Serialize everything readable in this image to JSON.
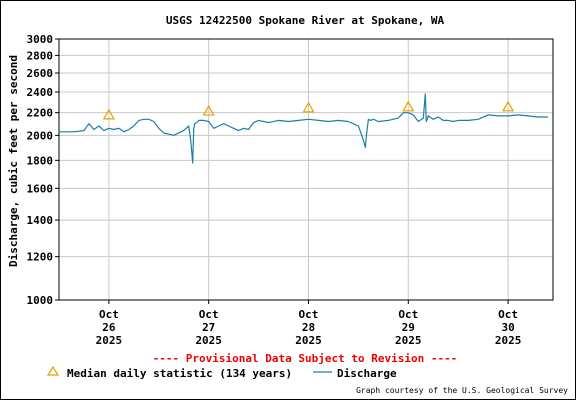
{
  "chart_data": {
    "type": "line",
    "title": "USGS 12422500 Spokane River at Spokane, WA",
    "ylabel": "Discharge, cubic feet per second",
    "xlabel": "",
    "y_scale": "log",
    "ylim": [
      1000,
      3000
    ],
    "y_ticks": [
      1000,
      1200,
      1400,
      1600,
      1800,
      2000,
      2200,
      2400,
      2600,
      2800,
      3000
    ],
    "xlim": [
      25.5,
      30.45
    ],
    "x_ticks": [
      {
        "day": 26,
        "line1": "Oct",
        "line2": "26",
        "line3": "2025"
      },
      {
        "day": 27,
        "line1": "Oct",
        "line2": "27",
        "line3": "2025"
      },
      {
        "day": 28,
        "line1": "Oct",
        "line2": "28",
        "line3": "2025"
      },
      {
        "day": 29,
        "line1": "Oct",
        "line2": "29",
        "line3": "2025"
      },
      {
        "day": 30,
        "line1": "Oct",
        "line2": "30",
        "line3": "2025"
      }
    ],
    "grid": true,
    "series": [
      {
        "name": "Discharge",
        "color": "#1a7fa8",
        "x": [
          25.5,
          25.65,
          25.75,
          25.8,
          25.85,
          25.9,
          25.95,
          26.0,
          26.05,
          26.1,
          26.15,
          26.2,
          26.25,
          26.3,
          26.35,
          26.4,
          26.45,
          26.5,
          26.55,
          26.65,
          26.75,
          26.8,
          26.82,
          26.84,
          26.85,
          26.86,
          26.88,
          26.9,
          26.95,
          27.0,
          27.05,
          27.1,
          27.15,
          27.2,
          27.25,
          27.3,
          27.35,
          27.4,
          27.45,
          27.5,
          27.55,
          27.6,
          27.7,
          27.8,
          27.9,
          28.0,
          28.1,
          28.2,
          28.3,
          28.4,
          28.5,
          28.55,
          28.57,
          28.58,
          28.6,
          28.62,
          28.65,
          28.7,
          28.8,
          28.9,
          28.95,
          29.0,
          29.05,
          29.1,
          29.15,
          29.17,
          29.18,
          29.2,
          29.25,
          29.3,
          29.35,
          29.4,
          29.45,
          29.5,
          29.6,
          29.7,
          29.8,
          29.9,
          30.0,
          30.1,
          30.2,
          30.3,
          30.4
        ],
        "values": [
          2030,
          2030,
          2040,
          2100,
          2050,
          2080,
          2040,
          2060,
          2050,
          2060,
          2030,
          2050,
          2080,
          2130,
          2140,
          2140,
          2120,
          2060,
          2020,
          2000,
          2040,
          2080,
          1960,
          1780,
          2050,
          2100,
          2110,
          2130,
          2130,
          2120,
          2060,
          2080,
          2100,
          2080,
          2060,
          2040,
          2060,
          2050,
          2110,
          2130,
          2120,
          2110,
          2130,
          2120,
          2130,
          2140,
          2130,
          2120,
          2130,
          2120,
          2080,
          1960,
          1900,
          2000,
          2140,
          2130,
          2140,
          2120,
          2130,
          2150,
          2200,
          2200,
          2180,
          2120,
          2150,
          2380,
          2120,
          2170,
          2140,
          2160,
          2130,
          2130,
          2120,
          2130,
          2130,
          2140,
          2180,
          2170,
          2170,
          2180,
          2170,
          2160,
          2160
        ]
      }
    ],
    "median_statistic": {
      "x": [
        26.0,
        27.0,
        28.0,
        29.0,
        30.0
      ],
      "values": [
        2180,
        2215,
        2245,
        2255,
        2255
      ],
      "color": "#e8a000"
    }
  },
  "provisional_notice": "---- Provisional Data Subject to Revision ----",
  "legend": {
    "median_label": "Median daily statistic (134 years)",
    "discharge_label": "Discharge"
  },
  "credit": "Graph courtesy of the U.S. Geological Survey"
}
